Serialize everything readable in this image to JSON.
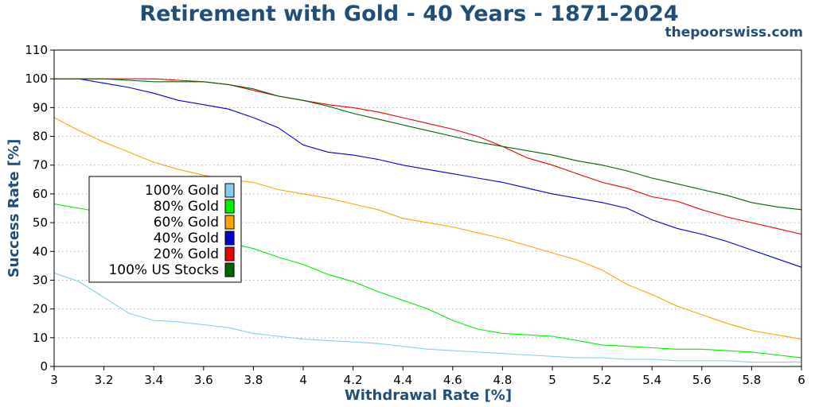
{
  "chart_data": {
    "type": "line",
    "title": "Retirement with Gold - 40 Years - 1871-2024",
    "watermark": "thepoorswiss.com",
    "xlabel": "Withdrawal Rate [%]",
    "ylabel": "Success Rate [%]",
    "xlim": [
      3,
      6
    ],
    "ylim": [
      0,
      110
    ],
    "xticks": [
      "3",
      "3.2",
      "3.4",
      "3.6",
      "3.8",
      "4",
      "4.2",
      "4.4",
      "4.6",
      "4.8",
      "5",
      "5.2",
      "5.4",
      "5.6",
      "5.8",
      "6"
    ],
    "yticks": [
      "0",
      "10",
      "20",
      "30",
      "40",
      "50",
      "60",
      "70",
      "80",
      "90",
      "100",
      "110"
    ],
    "grid": "horizontal-dotted",
    "legend_position": "left-middle",
    "x": [
      3.0,
      3.1,
      3.2,
      3.3,
      3.4,
      3.5,
      3.6,
      3.7,
      3.8,
      3.9,
      4.0,
      4.1,
      4.2,
      4.3,
      4.4,
      4.5,
      4.6,
      4.7,
      4.8,
      4.9,
      5.0,
      5.1,
      5.2,
      5.3,
      5.4,
      5.5,
      5.6,
      5.7,
      5.8,
      5.9,
      6.0
    ],
    "series": [
      {
        "name": "100% Gold",
        "color": "#87ceeb",
        "values": [
          32.5,
          29.5,
          24,
          18.5,
          16,
          15.5,
          14.5,
          13.5,
          11.5,
          10.5,
          9.5,
          9,
          8.5,
          8,
          7,
          6,
          5.5,
          5,
          4.5,
          4,
          3.5,
          3,
          3,
          2.5,
          2.5,
          2,
          2,
          2,
          1.5,
          1.5,
          1.5
        ]
      },
      {
        "name": "80% Gold",
        "color": "#00ee00",
        "values": [
          56.5,
          55,
          53.5,
          51,
          48,
          46,
          44.5,
          43,
          41,
          38,
          35.5,
          32,
          29.5,
          26,
          23,
          20,
          16,
          13,
          11.5,
          11,
          10.5,
          9,
          7.5,
          7,
          6.5,
          6,
          6,
          5.5,
          5,
          4,
          3
        ]
      },
      {
        "name": "60% Gold",
        "color": "#ffa500",
        "values": [
          86.5,
          82,
          78,
          74.5,
          71,
          68.5,
          66.5,
          65,
          64,
          61.5,
          60,
          58.5,
          56.5,
          54.5,
          51.5,
          50,
          48.5,
          46.5,
          44.5,
          42,
          39.5,
          37,
          33.5,
          28.5,
          25,
          21,
          18,
          15,
          12.5,
          11,
          9.5
        ]
      },
      {
        "name": "40% Gold",
        "color": "#0000cc",
        "values": [
          100,
          100,
          98.5,
          97,
          95,
          92.5,
          91,
          89.5,
          86.5,
          83,
          77,
          74.5,
          73.5,
          72,
          70,
          68.5,
          67,
          65.5,
          64,
          62,
          60,
          58.5,
          57,
          55,
          51,
          48,
          46,
          43.5,
          40.5,
          37.5,
          34.5
        ]
      },
      {
        "name": "20% Gold",
        "color": "#ee0000",
        "values": [
          100,
          100,
          100,
          100,
          100,
          99.5,
          99,
          98,
          96,
          94,
          92.5,
          91,
          90,
          88.5,
          86.5,
          84.5,
          82.5,
          80,
          76.5,
          72.5,
          70,
          67,
          64,
          62,
          59,
          57.5,
          54.5,
          52,
          50,
          48,
          46
        ]
      },
      {
        "name": "100% US Stocks",
        "color": "#006400",
        "values": [
          100,
          100,
          100,
          99.5,
          99,
          99,
          99,
          98,
          96.5,
          94,
          92.5,
          90.5,
          88,
          86,
          84,
          82,
          80,
          78,
          76.5,
          75,
          73.5,
          71.5,
          70,
          68,
          65.5,
          63.5,
          61.5,
          59.5,
          57,
          55.5,
          54.5
        ]
      }
    ]
  }
}
